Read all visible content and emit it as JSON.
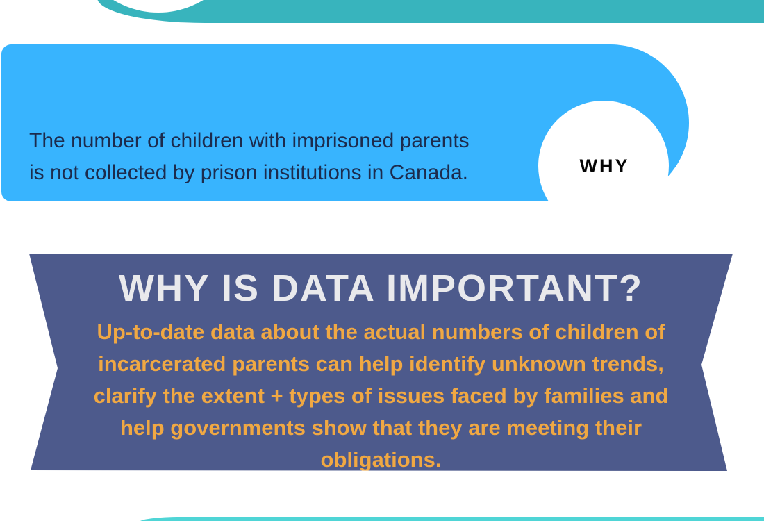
{
  "colors": {
    "top_bar_teal": "#38b4bd",
    "fact_card_blue": "#38b4fe",
    "fact_text_navy": "#1c2b4d",
    "badge_text_black": "#050505",
    "banner_navy": "#4d5a8c",
    "banner_title_gray": "#e9e9ec",
    "banner_body_orange": "#f0a843",
    "bottom_bar_teal": "#4fd5d6"
  },
  "fact_card": {
    "lines": [
      "The number of children with imprisoned parents",
      "is not collected by prison institutions in Canada."
    ],
    "badge_label": "WHY"
  },
  "importance_banner": {
    "title": "WHY IS DATA IMPORTANT?",
    "lines": [
      "Up-to-date data about the actual numbers of children of",
      "incarcerated parents can help identify unknown trends,",
      "clarify the extent + types of issues faced by families and",
      "help governments show that they are meeting their",
      "obligations."
    ]
  }
}
